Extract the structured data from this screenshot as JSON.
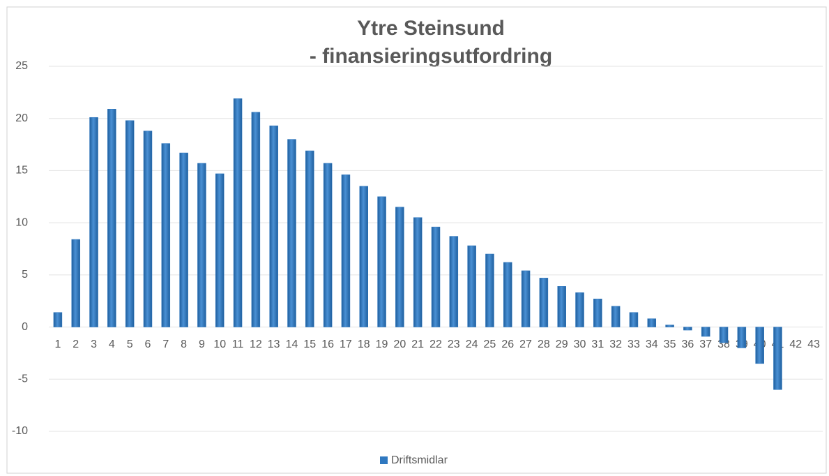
{
  "chart_data": {
    "type": "bar",
    "title": "Ytre Steinsund",
    "subtitle": "- finansieringsutfordring",
    "categories": [
      "1",
      "2",
      "3",
      "4",
      "5",
      "6",
      "7",
      "8",
      "9",
      "10",
      "11",
      "12",
      "13",
      "14",
      "15",
      "16",
      "17",
      "18",
      "19",
      "20",
      "21",
      "22",
      "23",
      "24",
      "25",
      "26",
      "27",
      "28",
      "29",
      "30",
      "31",
      "32",
      "33",
      "34",
      "35",
      "36",
      "37",
      "38",
      "39",
      "40",
      "41",
      "42",
      "43"
    ],
    "series": [
      {
        "name": "Driftsmidlar",
        "color": "#2f78c0",
        "values": [
          1.4,
          8.4,
          20.1,
          20.9,
          19.8,
          18.8,
          17.6,
          16.7,
          15.7,
          14.7,
          21.9,
          20.6,
          19.3,
          18.0,
          16.9,
          15.7,
          14.6,
          13.5,
          12.5,
          11.5,
          10.5,
          9.6,
          8.7,
          7.8,
          7.0,
          6.2,
          5.4,
          4.7,
          3.9,
          3.3,
          2.7,
          2.0,
          1.4,
          0.8,
          0.2,
          -0.3,
          -0.9,
          -1.5,
          -2.0,
          -3.5,
          -6.0,
          0,
          0
        ]
      }
    ],
    "ylim": [
      -10,
      25
    ],
    "yticks": [
      -10,
      -5,
      0,
      5,
      10,
      15,
      20,
      25
    ],
    "grid": true,
    "legend": "bottom"
  }
}
